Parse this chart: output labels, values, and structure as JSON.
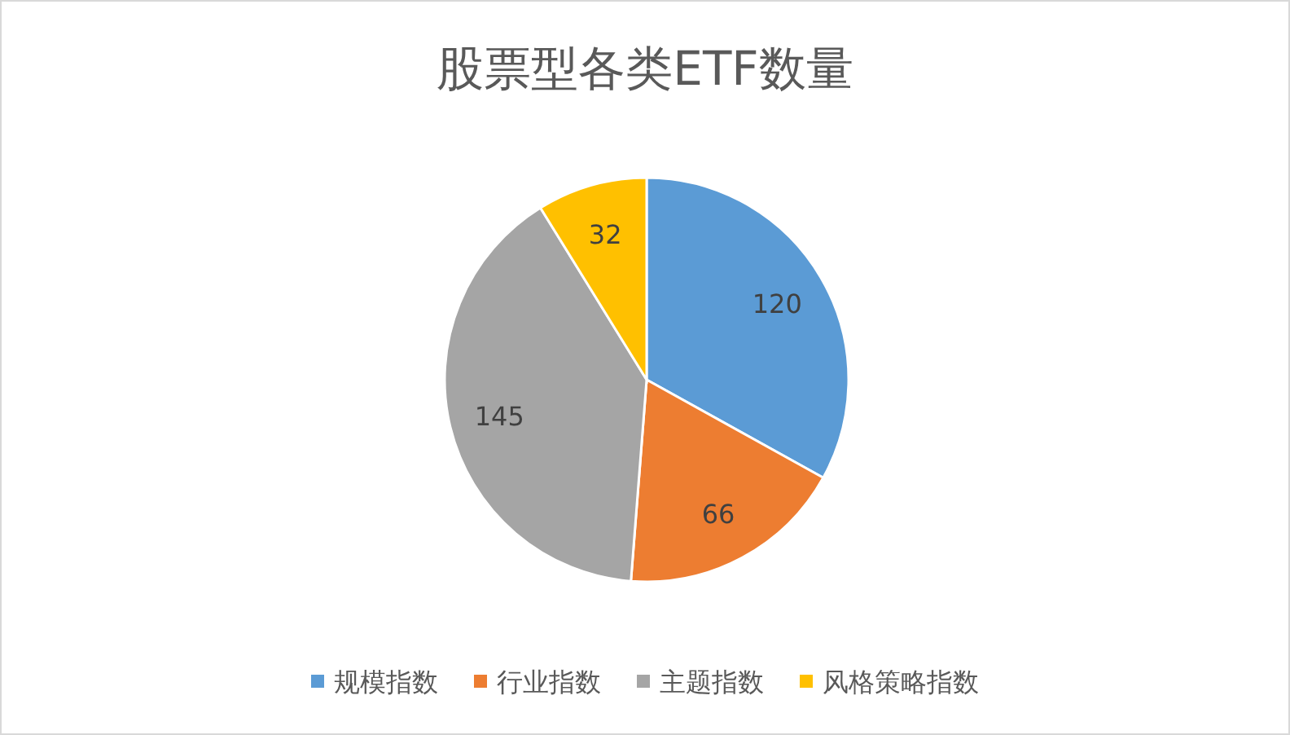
{
  "chart_data": {
    "type": "pie",
    "title": "股票型各类ETF数量",
    "categories": [
      "规模指数",
      "行业指数",
      "主题指数",
      "风格策略指数"
    ],
    "values": [
      120,
      66,
      145,
      32
    ],
    "colors": [
      "#5b9bd5",
      "#ed7d31",
      "#a5a5a5",
      "#ffc000"
    ],
    "data_labels": true,
    "legend": "bottom"
  }
}
